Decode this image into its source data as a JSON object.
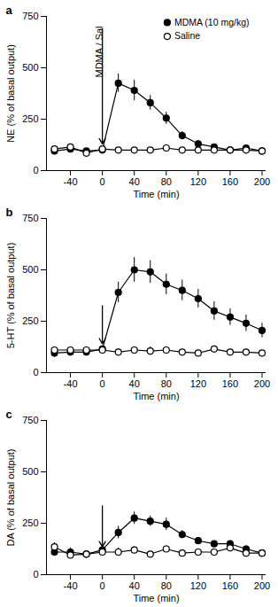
{
  "chart_data": [
    {
      "type": "line",
      "title": "a",
      "x_label": "Time (min)",
      "y_label": "NE (% of basal output)",
      "x": [
        -60,
        -40,
        -20,
        0,
        20,
        40,
        60,
        80,
        100,
        120,
        140,
        160,
        180,
        200
      ],
      "series": [
        {
          "name": "MDMA (10 mg/kg)",
          "color": "#000000",
          "marker": "circle",
          "values": [
            95,
            105,
            95,
            100,
            425,
            390,
            330,
            255,
            170,
            130,
            115,
            100,
            110,
            95
          ],
          "errors": [
            10,
            10,
            10,
            10,
            45,
            50,
            35,
            30,
            20,
            15,
            10,
            10,
            10,
            10
          ]
        },
        {
          "name": "Saline",
          "color": "#000000",
          "marker": "open_circle",
          "values": [
            105,
            115,
            85,
            105,
            100,
            100,
            100,
            110,
            100,
            100,
            100,
            100,
            100,
            95
          ],
          "errors": [
            10,
            10,
            10,
            10,
            10,
            10,
            10,
            10,
            10,
            10,
            10,
            10,
            10,
            10
          ]
        }
      ],
      "xlim": [
        -70,
        205
      ],
      "ylim": [
        0,
        750
      ],
      "xticks": [
        -40,
        0,
        40,
        80,
        120,
        160,
        200
      ],
      "yticks": [
        0,
        250,
        500,
        750
      ],
      "grid": false,
      "legend": "top-right",
      "annotation": {
        "text": "MDMA / Sal",
        "x": 0,
        "y_from": 690,
        "y_to": 130
      }
    },
    {
      "type": "line",
      "title": "b",
      "x_label": "Time (min)",
      "y_label": "5-HT (% of basal output)",
      "x": [
        -60,
        -40,
        -20,
        0,
        20,
        40,
        60,
        80,
        100,
        120,
        140,
        160,
        180,
        200
      ],
      "series": [
        {
          "name": "MDMA (10 mg/kg)",
          "color": "#000000",
          "marker": "circle",
          "values": [
            95,
            100,
            100,
            115,
            390,
            500,
            490,
            430,
            400,
            360,
            300,
            270,
            240,
            205
          ],
          "errors": [
            20,
            15,
            10,
            10,
            50,
            60,
            55,
            50,
            50,
            45,
            45,
            40,
            40,
            35
          ]
        },
        {
          "name": "Saline",
          "color": "#000000",
          "marker": "open_circle",
          "values": [
            110,
            110,
            110,
            110,
            100,
            110,
            105,
            110,
            100,
            95,
            115,
            100,
            100,
            95
          ],
          "errors": [
            15,
            15,
            10,
            10,
            15,
            15,
            20,
            15,
            10,
            10,
            15,
            10,
            10,
            10
          ]
        }
      ],
      "xlim": [
        -70,
        205
      ],
      "ylim": [
        0,
        750
      ],
      "xticks": [
        -40,
        0,
        40,
        80,
        120,
        160,
        200
      ],
      "yticks": [
        0,
        250,
        500,
        750
      ],
      "grid": false,
      "annotation": {
        "x": 0,
        "y_from": 325,
        "y_to": 140
      }
    },
    {
      "type": "line",
      "title": "c",
      "x_label": "Time (min)",
      "y_label": "DA (% of basal output)",
      "x": [
        -60,
        -40,
        -20,
        0,
        20,
        40,
        60,
        80,
        100,
        120,
        140,
        160,
        180,
        200
      ],
      "series": [
        {
          "name": "MDMA (10 mg/kg)",
          "color": "#000000",
          "marker": "circle",
          "values": [
            110,
            110,
            100,
            120,
            205,
            275,
            260,
            245,
            195,
            165,
            150,
            150,
            125,
            105
          ],
          "errors": [
            20,
            20,
            15,
            15,
            30,
            30,
            25,
            30,
            20,
            15,
            15,
            15,
            15,
            15
          ]
        },
        {
          "name": "Saline",
          "color": "#000000",
          "marker": "open_circle",
          "values": [
            135,
            95,
            100,
            110,
            110,
            120,
            100,
            125,
            105,
            110,
            110,
            130,
            105,
            105
          ],
          "errors": [
            20,
            15,
            10,
            10,
            20,
            15,
            15,
            15,
            10,
            10,
            10,
            15,
            15,
            15
          ]
        }
      ],
      "xlim": [
        -70,
        205
      ],
      "ylim": [
        0,
        750
      ],
      "xticks": [
        -40,
        0,
        40,
        80,
        120,
        160,
        200
      ],
      "yticks": [
        0,
        250,
        500,
        750
      ],
      "grid": false,
      "annotation": {
        "x": 0,
        "y_from": 335,
        "y_to": 135
      }
    }
  ]
}
